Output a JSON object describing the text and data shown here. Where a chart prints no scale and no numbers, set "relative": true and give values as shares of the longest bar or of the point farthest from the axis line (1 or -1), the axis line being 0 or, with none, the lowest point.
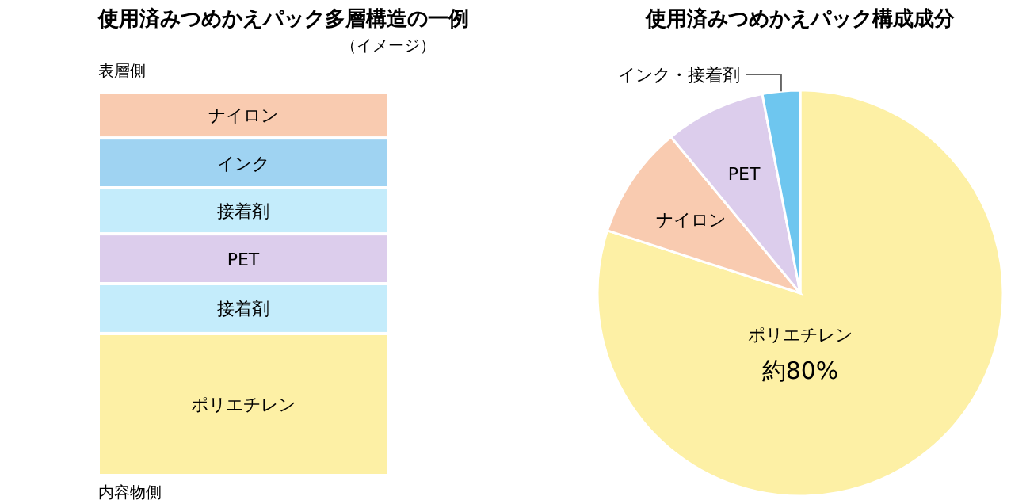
{
  "chart_data": [
    {
      "type": "bar",
      "title": "使用済みつめかえパック多層構造の一例",
      "subtitle": "（イメージ）",
      "stacked": true,
      "relative": true,
      "categories": [
        null
      ],
      "series": [
        {
          "name": "ポリエチレン",
          "color": "#fdf0a5",
          "values": [
            0.37
          ]
        },
        {
          "name": "接着剤",
          "color": "#c4ecfb",
          "values": [
            0.13
          ]
        },
        {
          "name": "PET",
          "color": "#dccdec",
          "values": [
            0.13
          ]
        },
        {
          "name": "接着剤",
          "color": "#c4ecfb",
          "values": [
            0.12
          ]
        },
        {
          "name": "インク",
          "color": "#9fd3f2",
          "values": [
            0.13
          ]
        },
        {
          "name": "ナイロン",
          "color": "#f9cbb0",
          "values": [
            0.12
          ]
        }
      ],
      "annotations": [
        "表層側",
        "内容物側"
      ]
    },
    {
      "type": "pie",
      "title": "使用済みつめかえパック構成成分",
      "categories": [
        "ポリエチレン",
        "ナイロン",
        "PET",
        "インク・接着剤"
      ],
      "values": [
        80,
        9,
        8,
        3
      ],
      "colors": [
        "#fdf0a5",
        "#f9cbb0",
        "#dccdec",
        "#6ec6ef"
      ],
      "value_labels": [
        "約80%",
        null,
        null,
        null
      ]
    }
  ]
}
